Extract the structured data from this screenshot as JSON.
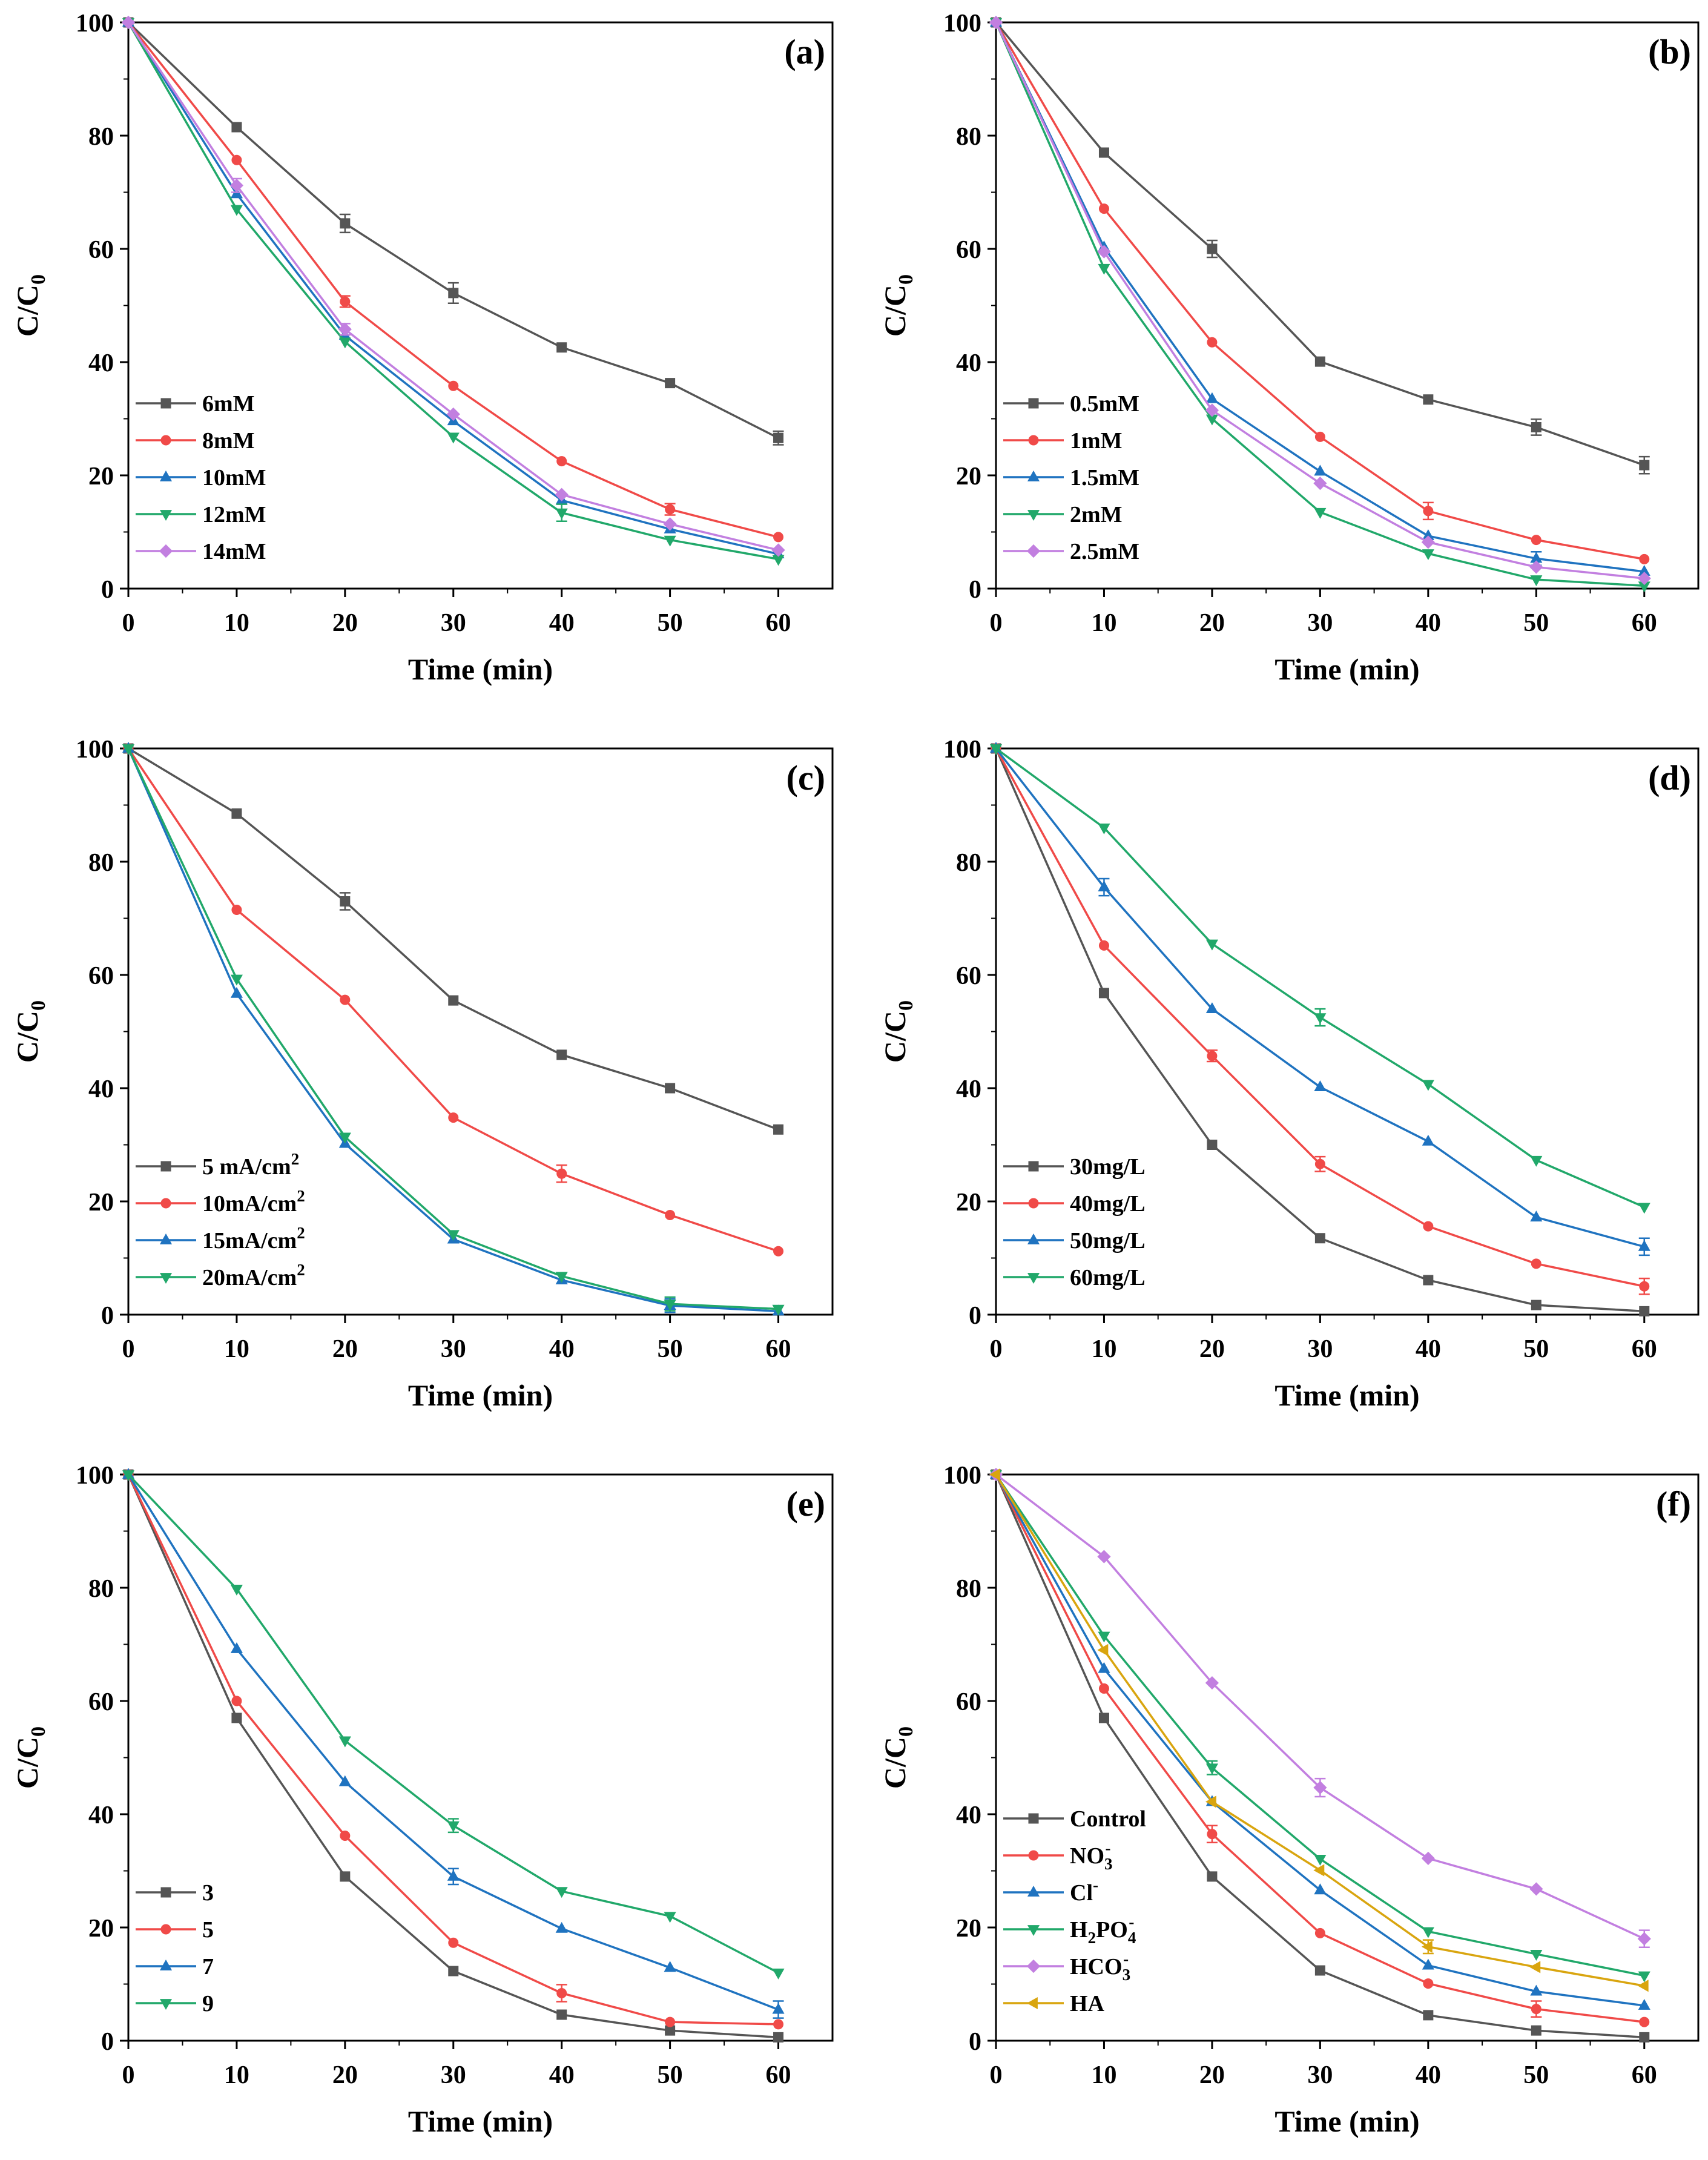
{
  "chart_data": [
    {
      "type": "line",
      "panel_label": "(a)",
      "xlabel": "Time (min)",
      "ylabel": "C/C",
      "ylabel_sub": "0",
      "x_ticks": [
        "0",
        "10",
        "20",
        "30",
        "40",
        "50",
        "60"
      ],
      "y_ticks": [
        "0",
        "20",
        "40",
        "60",
        "80",
        "100"
      ],
      "xlim": [
        0,
        65
      ],
      "ylim": [
        0,
        100
      ],
      "legend_position": "lower-left",
      "x": [
        0,
        10,
        20,
        30,
        40,
        50,
        60
      ],
      "series": [
        {
          "name": "6mM",
          "color": "#555555",
          "marker": "square",
          "values": [
            100,
            81.5,
            64.5,
            52.2,
            42.6,
            36.3,
            26.6
          ],
          "errors": [
            0,
            0.6,
            1.6,
            1.8,
            0.5,
            0.5,
            1.2
          ]
        },
        {
          "name": "8mM",
          "color": "#f04a48",
          "marker": "circle",
          "values": [
            100,
            75.7,
            50.7,
            35.8,
            22.5,
            14,
            9.1
          ],
          "errors": [
            0,
            0.5,
            1,
            0.5,
            0.5,
            1,
            0.5
          ]
        },
        {
          "name": "10mM",
          "color": "#1f73c0",
          "marker": "triangle-up",
          "values": [
            100,
            69.7,
            44.7,
            29.6,
            15.6,
            10.5,
            6.1
          ],
          "errors": [
            0,
            0.5,
            0.7,
            0.7,
            0.7,
            0.7,
            0.5
          ]
        },
        {
          "name": "12mM",
          "color": "#21a86a",
          "marker": "triangle-down",
          "values": [
            100,
            67,
            43.6,
            26.8,
            13.4,
            8.6,
            5.2
          ],
          "errors": [
            0,
            0.5,
            0.6,
            0.5,
            1.5,
            0.7,
            0.5
          ]
        },
        {
          "name": "14mM",
          "color": "#c27fe0",
          "marker": "diamond",
          "values": [
            100,
            71.2,
            45.8,
            30.8,
            16.6,
            11.4,
            6.8
          ],
          "errors": [
            0,
            1.2,
            1,
            0.7,
            0.6,
            0.6,
            0.5
          ]
        }
      ]
    },
    {
      "type": "line",
      "panel_label": "(b)",
      "xlabel": "Time (min)",
      "ylabel": "C/C",
      "ylabel_sub": "0",
      "x_ticks": [
        "0",
        "10",
        "20",
        "30",
        "40",
        "50",
        "60"
      ],
      "y_ticks": [
        "0",
        "20",
        "40",
        "60",
        "80",
        "100"
      ],
      "xlim": [
        0,
        65
      ],
      "ylim": [
        0,
        100
      ],
      "legend_position": "lower-left",
      "x": [
        0,
        10,
        20,
        30,
        40,
        50,
        60
      ],
      "series": [
        {
          "name": "0.5mM",
          "color": "#555555",
          "marker": "square",
          "values": [
            100,
            77,
            60,
            40.1,
            33.4,
            28.5,
            21.8
          ],
          "errors": [
            0,
            0.5,
            1.5,
            0.5,
            0.5,
            1.4,
            1.5
          ]
        },
        {
          "name": "1mM",
          "color": "#f04a48",
          "marker": "circle",
          "values": [
            100,
            67.1,
            43.5,
            26.8,
            13.7,
            8.6,
            5.2
          ],
          "errors": [
            0,
            0.5,
            0.5,
            0.5,
            1.5,
            0.5,
            0.4
          ]
        },
        {
          "name": "1.5mM",
          "color": "#1f73c0",
          "marker": "triangle-up",
          "values": [
            100,
            60.3,
            33.5,
            20.7,
            9.3,
            5.3,
            3
          ],
          "errors": [
            0,
            0.6,
            0.6,
            0.6,
            0.6,
            1.2,
            0.5
          ]
        },
        {
          "name": "2mM",
          "color": "#21a86a",
          "marker": "triangle-down",
          "values": [
            100,
            56.6,
            30,
            13.5,
            6.2,
            1.6,
            0.5
          ],
          "errors": [
            0,
            0.5,
            0.5,
            0.8,
            0.5,
            0.5,
            0.3
          ]
        },
        {
          "name": "2.5mM",
          "color": "#c27fe0",
          "marker": "diamond",
          "values": [
            100,
            59.5,
            31.5,
            18.6,
            8.2,
            3.8,
            1.8
          ],
          "errors": [
            0,
            0.5,
            0.5,
            0.8,
            0.5,
            0.5,
            0.4
          ]
        }
      ]
    },
    {
      "type": "line",
      "panel_label": "(c)",
      "xlabel": "Time (min)",
      "ylabel": "C/C",
      "ylabel_sub": "0",
      "x_ticks": [
        "0",
        "10",
        "20",
        "30",
        "40",
        "50",
        "60"
      ],
      "y_ticks": [
        "0",
        "20",
        "40",
        "60",
        "80",
        "100"
      ],
      "xlim": [
        0,
        65
      ],
      "ylim": [
        0,
        100
      ],
      "legend_position": "lower-left",
      "x": [
        0,
        10,
        20,
        30,
        40,
        50,
        60
      ],
      "series": [
        {
          "name": "5  mA/cm",
          "name_sup": "2",
          "color": "#555555",
          "marker": "square",
          "values": [
            100,
            88.5,
            73,
            55.5,
            45.9,
            40,
            32.7
          ],
          "errors": [
            0,
            0.5,
            1.5,
            0.5,
            0.5,
            0.5,
            0.5
          ]
        },
        {
          "name": "10mA/cm",
          "name_sup": "2",
          "color": "#f04a48",
          "marker": "circle",
          "values": [
            100,
            71.5,
            55.6,
            34.8,
            24.9,
            17.6,
            11.2
          ],
          "errors": [
            0,
            0.5,
            0.5,
            0.5,
            1.5,
            0.5,
            0.5
          ]
        },
        {
          "name": "15mA/cm",
          "name_sup": "2",
          "color": "#1f73c0",
          "marker": "triangle-up",
          "values": [
            100,
            56.7,
            30.2,
            13.3,
            6.1,
            1.6,
            0.6
          ],
          "errors": [
            0,
            0.5,
            0.5,
            0.5,
            0.5,
            1.2,
            0.5
          ]
        },
        {
          "name": "20mA/cm",
          "name_sup": "2",
          "color": "#21a86a",
          "marker": "triangle-down",
          "values": [
            100,
            59.3,
            31.4,
            14.2,
            6.8,
            1.9,
            1
          ],
          "errors": [
            0,
            0.5,
            0.5,
            0.5,
            0.5,
            1.2,
            0.5
          ]
        }
      ]
    },
    {
      "type": "line",
      "panel_label": "(d)",
      "xlabel": "Time (min)",
      "ylabel": "C/C",
      "ylabel_sub": "0",
      "x_ticks": [
        "0",
        "10",
        "20",
        "30",
        "40",
        "50",
        "60"
      ],
      "y_ticks": [
        "0",
        "20",
        "40",
        "60",
        "80",
        "100"
      ],
      "xlim": [
        0,
        65
      ],
      "ylim": [
        0,
        100
      ],
      "legend_position": "lower-left",
      "x": [
        0,
        10,
        20,
        30,
        40,
        50,
        60
      ],
      "series": [
        {
          "name": "30mg/L",
          "color": "#555555",
          "marker": "square",
          "values": [
            100,
            56.8,
            30,
            13.5,
            6.1,
            1.7,
            0.6
          ],
          "errors": [
            0,
            0.5,
            0.5,
            0.5,
            0.5,
            0.5,
            0.3
          ]
        },
        {
          "name": "40mg/L",
          "color": "#f04a48",
          "marker": "circle",
          "values": [
            100,
            65.2,
            45.7,
            26.6,
            15.6,
            9,
            5
          ],
          "errors": [
            0,
            0.5,
            1,
            1.3,
            0.5,
            0.8,
            1.4
          ]
        },
        {
          "name": "50mg/L",
          "color": "#1f73c0",
          "marker": "triangle-up",
          "values": [
            100,
            75.5,
            54,
            40.2,
            30.6,
            17.2,
            12
          ],
          "errors": [
            0,
            1.5,
            0.5,
            0.5,
            0.5,
            0.5,
            1.5
          ]
        },
        {
          "name": "60mg/L",
          "color": "#21a86a",
          "marker": "triangle-down",
          "values": [
            100,
            86,
            65.5,
            52.5,
            40.7,
            27.3,
            19
          ],
          "errors": [
            0,
            0.5,
            0.5,
            1.5,
            0.5,
            0.5,
            0.5
          ]
        }
      ]
    },
    {
      "type": "line",
      "panel_label": "(e)",
      "xlabel": "Time (min)",
      "ylabel": "C/C",
      "ylabel_sub": "0",
      "x_ticks": [
        "0",
        "10",
        "20",
        "30",
        "40",
        "50",
        "60"
      ],
      "y_ticks": [
        "0",
        "20",
        "40",
        "60",
        "80",
        "100"
      ],
      "xlim": [
        0,
        65
      ],
      "ylim": [
        0,
        100
      ],
      "legend_position": "lower-left",
      "x": [
        0,
        10,
        20,
        30,
        40,
        50,
        60
      ],
      "series": [
        {
          "name": "3",
          "color": "#555555",
          "marker": "square",
          "values": [
            100,
            57,
            29,
            12.3,
            4.6,
            1.8,
            0.6
          ],
          "errors": [
            0,
            0.5,
            0.5,
            0.5,
            0.5,
            0.5,
            0.3
          ]
        },
        {
          "name": "5",
          "color": "#f04a48",
          "marker": "circle",
          "values": [
            100,
            60,
            36.2,
            17.3,
            8.4,
            3.3,
            2.9
          ],
          "errors": [
            0,
            0.5,
            0.5,
            0.5,
            1.5,
            0.5,
            0.5
          ]
        },
        {
          "name": "7",
          "color": "#1f73c0",
          "marker": "triangle-up",
          "values": [
            100,
            69.2,
            45.7,
            29,
            19.8,
            12.9,
            5.5
          ],
          "errors": [
            0,
            0.5,
            0.5,
            1.4,
            0.5,
            0.5,
            1.5
          ]
        },
        {
          "name": "9",
          "color": "#21a86a",
          "marker": "triangle-down",
          "values": [
            100,
            79.8,
            53,
            38,
            26.4,
            22,
            12
          ],
          "errors": [
            0,
            0.8,
            0.5,
            1.2,
            0.5,
            0.5,
            0.5
          ]
        }
      ]
    },
    {
      "type": "line",
      "panel_label": "(f)",
      "xlabel": "Time (min)",
      "ylabel": "C/C",
      "ylabel_sub": "0",
      "x_ticks": [
        "0",
        "10",
        "20",
        "30",
        "40",
        "50",
        "60"
      ],
      "y_ticks": [
        "0",
        "20",
        "40",
        "60",
        "80",
        "100"
      ],
      "xlim": [
        0,
        65
      ],
      "ylim": [
        0,
        100
      ],
      "legend_position": "lower-left",
      "x": [
        0,
        10,
        20,
        30,
        40,
        50,
        60
      ],
      "series": [
        {
          "name": "Control",
          "color": "#555555",
          "marker": "square",
          "values": [
            100,
            57,
            29,
            12.4,
            4.5,
            1.8,
            0.6
          ],
          "errors": [
            0,
            0.5,
            0.5,
            0.5,
            0.5,
            0.5,
            0.3
          ]
        },
        {
          "name": "NO",
          "name_sub": "3",
          "name_sup": "-",
          "color": "#f04a48",
          "marker": "circle",
          "values": [
            100,
            62.2,
            36.5,
            19,
            10.1,
            5.6,
            3.3
          ],
          "errors": [
            0,
            0.5,
            1.5,
            0.5,
            0.5,
            1.4,
            0.5
          ]
        },
        {
          "name": "Cl",
          "name_sup": "-",
          "color": "#1f73c0",
          "marker": "triangle-up",
          "values": [
            100,
            65.7,
            42.2,
            26.6,
            13.3,
            8.7,
            6.2
          ],
          "errors": [
            0,
            0.5,
            0.5,
            0.5,
            0.5,
            0.8,
            0.5
          ]
        },
        {
          "name": "H",
          "name_sub": "2",
          "name_tail": "PO",
          "name_tail_sub": "4",
          "name_tail_sup": "-",
          "color": "#21a86a",
          "marker": "triangle-down",
          "values": [
            100,
            71.5,
            48.2,
            32.1,
            19.3,
            15.3,
            11.5
          ],
          "errors": [
            0,
            0.5,
            1.2,
            0.5,
            0.5,
            0.5,
            0.5
          ]
        },
        {
          "name": "HCO",
          "name_sub": "3",
          "name_sup": "-",
          "color": "#c27fe0",
          "marker": "diamond",
          "values": [
            100,
            85.5,
            63.2,
            44.7,
            32.2,
            26.8,
            18
          ],
          "errors": [
            0,
            0.5,
            0.5,
            1.6,
            0.5,
            0.5,
            1.5
          ]
        },
        {
          "name": "HA",
          "color": "#d9a50f",
          "marker": "triangle-left",
          "values": [
            100,
            69,
            42.2,
            30.1,
            16.6,
            13,
            9.7
          ],
          "errors": [
            0,
            0.5,
            0.5,
            0.5,
            1.2,
            0.5,
            0.5
          ]
        }
      ]
    }
  ]
}
